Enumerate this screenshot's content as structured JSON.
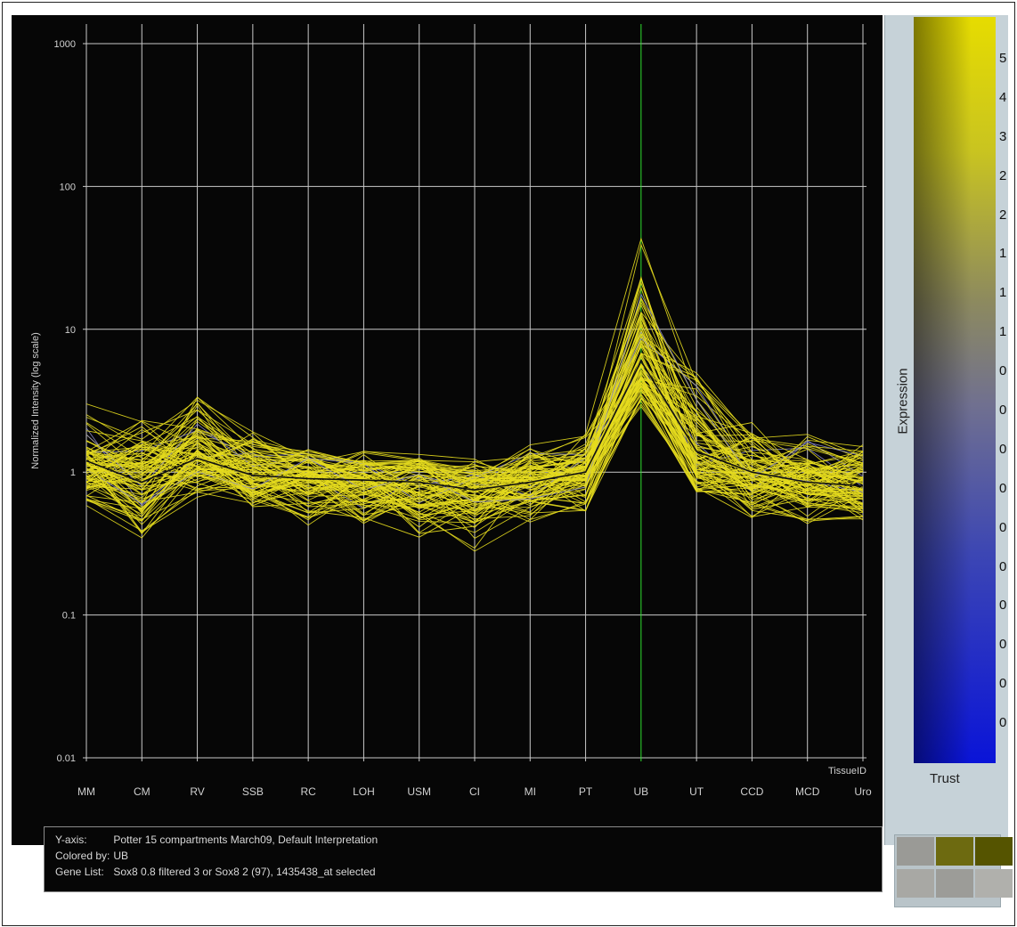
{
  "chart_data": {
    "type": "line",
    "yscale": "log",
    "ylim": [
      0.01,
      1000
    ],
    "ylabel": "Normalized Intensity (log scale)",
    "xlabel": "TissueID",
    "categories": [
      "MM",
      "CM",
      "RV",
      "SSB",
      "RC",
      "LOH",
      "USM",
      "CI",
      "MI",
      "PT",
      "UB",
      "UT",
      "CCD",
      "MCD",
      "Uro"
    ],
    "ytick_labels": [
      "1000",
      "100",
      "10",
      "1",
      "0.1",
      "0.01"
    ],
    "selected_category": "UB",
    "grid": true,
    "series_summary": [
      {
        "name": "median",
        "values": [
          1.2,
          0.85,
          1.25,
          0.95,
          0.9,
          0.88,
          0.85,
          0.75,
          0.85,
          1.0,
          6.0,
          1.4,
          1.0,
          0.85,
          0.8
        ]
      },
      {
        "name": "upper",
        "values": [
          2.8,
          2.2,
          3.6,
          1.8,
          1.5,
          1.4,
          1.3,
          1.2,
          1.6,
          2.0,
          40.0,
          4.5,
          2.4,
          1.9,
          1.7
        ]
      },
      {
        "name": "lower",
        "values": [
          0.6,
          0.35,
          0.7,
          0.55,
          0.45,
          0.45,
          0.35,
          0.3,
          0.45,
          0.55,
          3.0,
          0.7,
          0.5,
          0.45,
          0.45
        ]
      }
    ],
    "colors": {
      "line": "#e6dc1e",
      "selected_line": "#30e030",
      "minor_series": "#8888c8",
      "grid": "#c8c8c8"
    }
  },
  "info": {
    "yaxis_key": "Y-axis:",
    "yaxis_value": "Potter 15 compartments March09, Default Interpretation",
    "colored_key": "Colored by:",
    "colored_value": "UB",
    "genelist_key": "Gene List:",
    "genelist_value": "Sox8 0.8 filtered 3 or Sox8 2 (97), 1435438_at selected"
  },
  "legend": {
    "expression_label": "Expression",
    "trust_label": "Trust",
    "tick_labels": [
      "5",
      "4",
      "3",
      "2",
      "2",
      "1",
      "1",
      "1",
      "0",
      "0",
      "0",
      "0",
      "0",
      "0",
      "0",
      "0",
      "0",
      "0"
    ]
  }
}
